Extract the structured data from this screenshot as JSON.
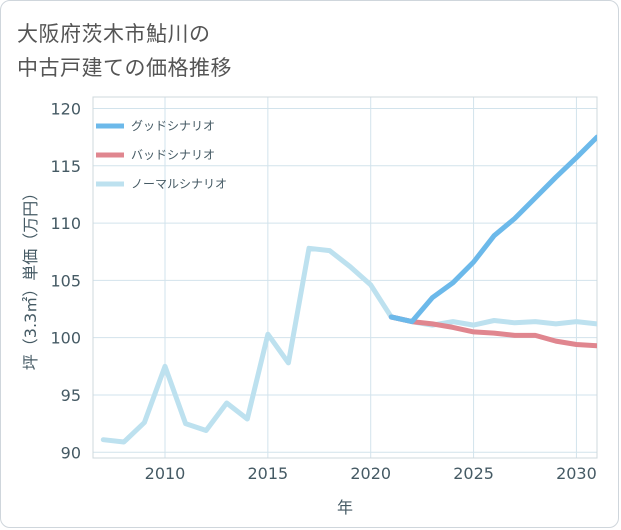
{
  "title_line1": "大阪府茨木市鮎川の",
  "title_line2": "中古戸建ての価格推移",
  "chart_data": {
    "type": "line",
    "xlabel": "年",
    "ylabel": "坪（3.3㎡）単価（万円）",
    "xlim": [
      2006.5,
      2031
    ],
    "ylim": [
      89.5,
      121
    ],
    "x_ticks": [
      2010,
      2015,
      2020,
      2025,
      2030
    ],
    "y_ticks": [
      90,
      95,
      100,
      105,
      110,
      115,
      120
    ],
    "grid": true,
    "legend_position": "top-left",
    "series": [
      {
        "name": "グッドシナリオ",
        "color": "#6cb9ea",
        "x": [
          2021,
          2022,
          2023,
          2024,
          2025,
          2026,
          2027,
          2028,
          2029,
          2030,
          2031
        ],
        "y": [
          101.8,
          101.4,
          103.5,
          104.8,
          106.6,
          108.9,
          110.4,
          112.2,
          114.0,
          115.7,
          117.5
        ]
      },
      {
        "name": "バッドシナリオ",
        "color": "#e0868f",
        "x": [
          2021,
          2022,
          2023,
          2024,
          2025,
          2026,
          2027,
          2028,
          2029,
          2030,
          2031
        ],
        "y": [
          101.8,
          101.4,
          101.2,
          100.9,
          100.5,
          100.4,
          100.2,
          100.2,
          99.7,
          99.4,
          99.3
        ]
      },
      {
        "name": "ノーマルシナリオ",
        "color": "#bde1ef",
        "x": [
          2007,
          2008,
          2009,
          2010,
          2011,
          2012,
          2013,
          2014,
          2015,
          2016,
          2017,
          2018,
          2019,
          2020,
          2021,
          2022,
          2023,
          2024,
          2025,
          2026,
          2027,
          2028,
          2029,
          2030,
          2031
        ],
        "y": [
          91.1,
          90.9,
          92.6,
          97.5,
          92.5,
          91.9,
          94.3,
          92.9,
          100.3,
          97.8,
          107.8,
          107.6,
          106.2,
          104.6,
          101.8,
          101.4,
          101.1,
          101.4,
          101.1,
          101.5,
          101.3,
          101.4,
          101.2,
          101.4,
          101.2
        ]
      }
    ]
  }
}
